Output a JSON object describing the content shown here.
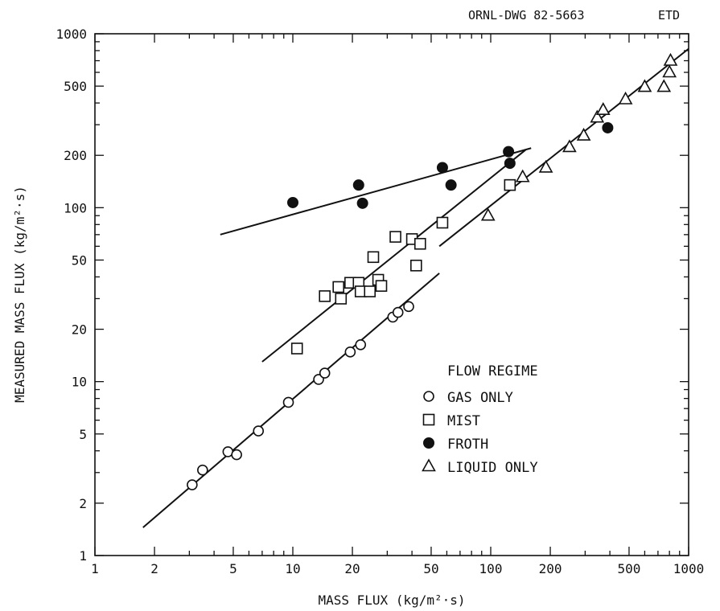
{
  "header": {
    "drawing_id": "ORNL-DWG 82-5663",
    "suffix": "ETD"
  },
  "chart_data": {
    "type": "scatter",
    "xlabel": "MASS FLUX (kg/m²·s)",
    "ylabel": "MEASURED MASS FLUX (kg/m²·s)",
    "xscale": "log",
    "yscale": "log",
    "xlim": [
      1,
      1000
    ],
    "ylim": [
      1,
      1000
    ],
    "x_ticks": [
      {
        "v": 1,
        "label": "1"
      },
      {
        "v": 2,
        "label": "2"
      },
      {
        "v": 5,
        "label": "5"
      },
      {
        "v": 10,
        "label": "10"
      },
      {
        "v": 20,
        "label": "20"
      },
      {
        "v": 50,
        "label": "50"
      },
      {
        "v": 100,
        "label": "100"
      },
      {
        "v": 200,
        "label": "200"
      },
      {
        "v": 500,
        "label": "500"
      },
      {
        "v": 1000,
        "label": "1000"
      }
    ],
    "y_ticks": [
      {
        "v": 1,
        "label": "1"
      },
      {
        "v": 2,
        "label": "2"
      },
      {
        "v": 5,
        "label": "5"
      },
      {
        "v": 10,
        "label": "10"
      },
      {
        "v": 20,
        "label": "20"
      },
      {
        "v": 50,
        "label": "50"
      },
      {
        "v": 100,
        "label": "100"
      },
      {
        "v": 200,
        "label": "200"
      },
      {
        "v": 500,
        "label": "500"
      },
      {
        "v": 1000,
        "label": "1000"
      }
    ],
    "grid": false,
    "legend": {
      "title": "FLOW REGIME",
      "placement": "lower-right",
      "entries": [
        {
          "series": "gas",
          "label": "GAS ONLY"
        },
        {
          "series": "mist",
          "label": "MIST"
        },
        {
          "series": "froth",
          "label": "FROTH"
        },
        {
          "series": "liquid",
          "label": "LIQUID ONLY"
        }
      ]
    },
    "series": [
      {
        "id": "gas",
        "name": "GAS ONLY",
        "marker": "open-circle",
        "points": [
          [
            3.1,
            2.55
          ],
          [
            3.5,
            3.1
          ],
          [
            4.7,
            3.95
          ],
          [
            5.2,
            3.8
          ],
          [
            6.7,
            5.2
          ],
          [
            9.5,
            7.6
          ],
          [
            13.5,
            10.3
          ],
          [
            14.5,
            11.2
          ],
          [
            19.5,
            14.8
          ],
          [
            22,
            16.3
          ],
          [
            32,
            23.5
          ],
          [
            34,
            25
          ],
          [
            38.5,
            27
          ]
        ]
      },
      {
        "id": "mist",
        "name": "MIST",
        "marker": "open-square",
        "points": [
          [
            10.5,
            15.5
          ],
          [
            14.5,
            31
          ],
          [
            17,
            35
          ],
          [
            17.5,
            30
          ],
          [
            19.5,
            37
          ],
          [
            21.5,
            37
          ],
          [
            22,
            33
          ],
          [
            24.5,
            33
          ],
          [
            25.5,
            52
          ],
          [
            27,
            38.5
          ],
          [
            28,
            35.5
          ],
          [
            33,
            68
          ],
          [
            40,
            66
          ],
          [
            42,
            46.5
          ],
          [
            44,
            62
          ],
          [
            57,
            82
          ],
          [
            125,
            135
          ]
        ]
      },
      {
        "id": "froth",
        "name": "FROTH",
        "marker": "filled-circle",
        "points": [
          [
            10,
            107
          ],
          [
            21.5,
            135
          ],
          [
            22.5,
            106
          ],
          [
            57,
            170
          ],
          [
            63,
            135
          ],
          [
            123,
            210
          ],
          [
            125,
            180
          ],
          [
            390,
            288
          ]
        ]
      },
      {
        "id": "liquid",
        "name": "LIQUID ONLY",
        "marker": "open-triangle",
        "points": [
          [
            97,
            90
          ],
          [
            145,
            150
          ],
          [
            190,
            170
          ],
          [
            250,
            223
          ],
          [
            295,
            260
          ],
          [
            345,
            330
          ],
          [
            370,
            365
          ],
          [
            480,
            420
          ],
          [
            600,
            495
          ],
          [
            750,
            495
          ],
          [
            800,
            600
          ],
          [
            810,
            700
          ]
        ]
      }
    ],
    "fit_lines": [
      {
        "series": "gas",
        "from": [
          1.75,
          1.45
        ],
        "to": [
          55,
          42
        ]
      },
      {
        "series": "froth",
        "from": [
          4.3,
          70
        ],
        "to": [
          160,
          220
        ]
      },
      {
        "series": "mist",
        "from": [
          7,
          13
        ],
        "to": [
          150,
          215
        ]
      },
      {
        "series": "liquid",
        "from": [
          55,
          60
        ],
        "to": [
          1000,
          820
        ]
      }
    ]
  }
}
